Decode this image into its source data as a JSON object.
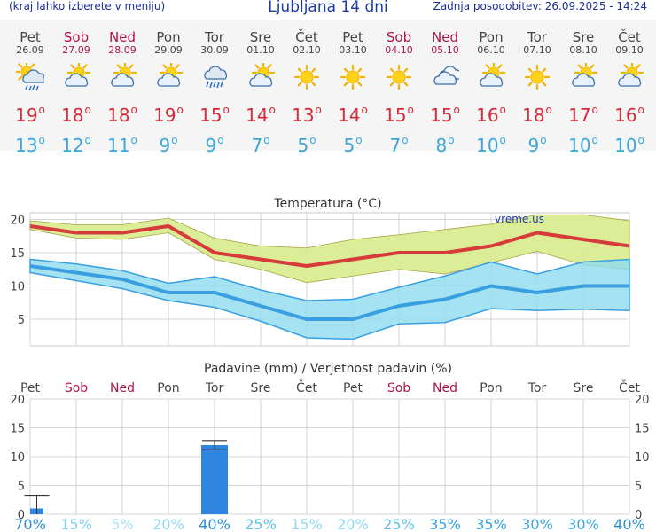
{
  "header": {
    "left": "(kraj lahko izberete v meniju)",
    "title": "Ljubljana 14 dni",
    "updated": "Zadnja posodobitev: 26.09.2025 - 14:24"
  },
  "days": [
    {
      "name": "Pet",
      "date": "26.09",
      "weekend": false,
      "icon": "sun-cloud-rain-icon",
      "tmax": "19",
      "tmin": "13"
    },
    {
      "name": "Sob",
      "date": "27.09",
      "weekend": true,
      "icon": "partly-cloudy-icon",
      "tmax": "18",
      "tmin": "12"
    },
    {
      "name": "Ned",
      "date": "28.09",
      "weekend": true,
      "icon": "partly-cloudy-icon",
      "tmax": "18",
      "tmin": "11"
    },
    {
      "name": "Pon",
      "date": "29.09",
      "weekend": false,
      "icon": "partly-cloudy-icon",
      "tmax": "19",
      "tmin": "9"
    },
    {
      "name": "Tor",
      "date": "30.09",
      "weekend": false,
      "icon": "rain-cloud-icon",
      "tmax": "15",
      "tmin": "9"
    },
    {
      "name": "Sre",
      "date": "01.10",
      "weekend": false,
      "icon": "partly-cloudy-icon",
      "tmax": "14",
      "tmin": "7"
    },
    {
      "name": "Čet",
      "date": "02.10",
      "weekend": false,
      "icon": "sunny-icon",
      "tmax": "13",
      "tmin": "5"
    },
    {
      "name": "Pet",
      "date": "03.10",
      "weekend": false,
      "icon": "sunny-icon",
      "tmax": "14",
      "tmin": "5"
    },
    {
      "name": "Sob",
      "date": "04.10",
      "weekend": true,
      "icon": "sunny-icon",
      "tmax": "15",
      "tmin": "7"
    },
    {
      "name": "Ned",
      "date": "05.10",
      "weekend": true,
      "icon": "cloudy-icon",
      "tmax": "15",
      "tmin": "8"
    },
    {
      "name": "Pon",
      "date": "06.10",
      "weekend": false,
      "icon": "partly-cloudy-icon",
      "tmax": "16",
      "tmin": "10"
    },
    {
      "name": "Tor",
      "date": "07.10",
      "weekend": false,
      "icon": "sunny-icon",
      "tmax": "18",
      "tmin": "9"
    },
    {
      "name": "Sre",
      "date": "08.10",
      "weekend": false,
      "icon": "partly-cloudy-icon",
      "tmax": "17",
      "tmin": "10"
    },
    {
      "name": "Čet",
      "date": "09.10",
      "weekend": false,
      "icon": "partly-cloudy-icon",
      "tmax": "16",
      "tmin": "10"
    }
  ],
  "colors": {
    "weekend": "#b0134a",
    "weekday": "#444444",
    "max_line": "#d63a3a",
    "max_band": "#d7ec8c",
    "min_line": "#3a9fe0",
    "min_band": "#8fdcef",
    "overlap": "#8ed89a",
    "bar": "#2f86e0"
  },
  "chart_data": [
    {
      "type": "line",
      "title": "Temperatura (°C)",
      "watermark": "vreme.us",
      "x": [
        "Pet",
        "Sob",
        "Ned",
        "Pon",
        "Tor",
        "Sre",
        "Čet",
        "Pet",
        "Sob",
        "Ned",
        "Pon",
        "Tor",
        "Sre",
        "Čet"
      ],
      "yticks": [
        5,
        10,
        15,
        20
      ],
      "ylim": [
        1,
        21
      ],
      "grid": true,
      "series": [
        {
          "values": [
            19,
            18,
            18,
            19,
            15,
            14,
            13,
            14,
            15,
            15,
            16,
            18,
            17,
            16
          ],
          "band_low": [
            18.5,
            17.2,
            17,
            18,
            14,
            12.5,
            10.5,
            11.5,
            12.5,
            11.8,
            13.5,
            15.2,
            13.2,
            12.5
          ],
          "band_high": [
            19.8,
            19.2,
            19.2,
            20.2,
            17.2,
            16,
            15.7,
            17,
            17.7,
            18.5,
            19.3,
            20.7,
            20.7,
            19.8
          ]
        },
        {
          "values": [
            13,
            12,
            11,
            9,
            9,
            7,
            5,
            5,
            7,
            8,
            10,
            9,
            10,
            10
          ],
          "band_low": [
            12,
            10.8,
            9.6,
            7.8,
            6.8,
            4.7,
            2.2,
            2,
            4.3,
            4.5,
            6.6,
            6.3,
            6.5,
            6.3
          ],
          "band_high": [
            14,
            13.3,
            12.3,
            10.4,
            11.4,
            9.4,
            7.8,
            8,
            9.8,
            11.5,
            13.6,
            11.8,
            13.6,
            14
          ]
        }
      ]
    },
    {
      "type": "bar",
      "title": "Padavine (mm) / Verjetnost padavin (%)",
      "categories": [
        "Pet",
        "Sob",
        "Ned",
        "Pon",
        "Tor",
        "Sre",
        "Čet",
        "Pet",
        "Sob",
        "Ned",
        "Pon",
        "Tor",
        "Sre",
        "Čet"
      ],
      "values": [
        1.0,
        0,
        0,
        0,
        12.0,
        0,
        0,
        0,
        0,
        0,
        0,
        0,
        0,
        0
      ],
      "error_high": [
        3.3,
        0,
        0,
        0,
        12.8,
        0,
        0,
        0,
        0,
        0,
        0,
        0,
        0,
        0
      ],
      "error_low": [
        0,
        0,
        0,
        0,
        11.2,
        0,
        0,
        0,
        0,
        0,
        0,
        0,
        0,
        0
      ],
      "yticks": [
        0,
        5,
        10,
        15,
        20
      ],
      "ylim": [
        0,
        20
      ],
      "probability": [
        "70%",
        "15%",
        "5%",
        "20%",
        "40%",
        "25%",
        "15%",
        "20%",
        "25%",
        "35%",
        "35%",
        "30%",
        "30%",
        "40%"
      ],
      "probability_colors": [
        "#2a8fd8",
        "#7fd0ee",
        "#a6e2f5",
        "#8fd8f0",
        "#2a8fd8",
        "#5cc0ec",
        "#8fd8f0",
        "#8fd8f0",
        "#5cc0ec",
        "#2fa2e0",
        "#2fa2e0",
        "#3aa8e2",
        "#3aa8e2",
        "#2a8fd8"
      ]
    }
  ]
}
